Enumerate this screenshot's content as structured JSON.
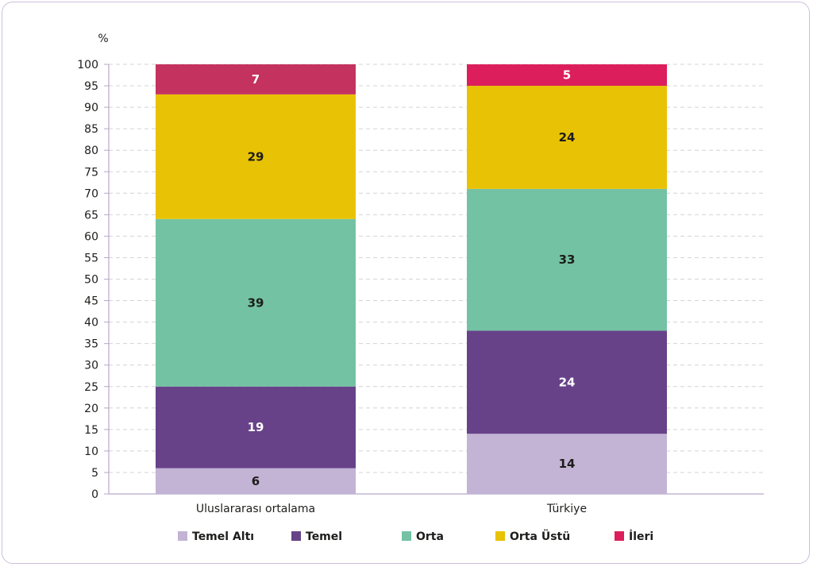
{
  "chart_data": {
    "type": "bar",
    "stacked": true,
    "unit_label": "%",
    "ylim": [
      0,
      100
    ],
    "ytick_step": 5,
    "grid": true,
    "legend_position": "bottom",
    "categories": [
      "Uluslararası ortalama",
      "Türkiye"
    ],
    "series": [
      {
        "name": "Temel Altı",
        "color": "#c3b3d5",
        "label_color": "#1d1d1b",
        "values": [
          6,
          14
        ]
      },
      {
        "name": "Temel",
        "color": "#674289",
        "label_color": "#ffffff",
        "values": [
          19,
          24
        ]
      },
      {
        "name": "Orta",
        "color": "#74c2a4",
        "label_color": "#1d1d1b",
        "values": [
          39,
          33
        ]
      },
      {
        "name": "Orta Üstü",
        "color": "#e8c204",
        "label_color": "#1d1d1b",
        "values": [
          29,
          24
        ]
      },
      {
        "name": "İleri",
        "color": "#c4325f",
        "colors": [
          "#c4325f",
          "#dc1f5c"
        ],
        "label_color": "#ffffff",
        "values": [
          7,
          5
        ]
      }
    ]
  }
}
